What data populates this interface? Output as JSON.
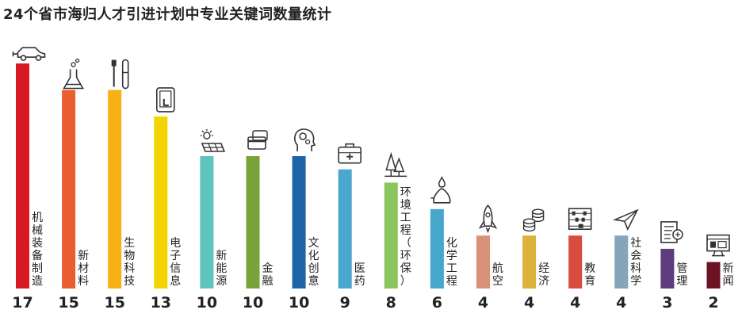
{
  "title": "24个省市海归人才引进计划中专业关键词数量统计",
  "chart_data": {
    "type": "bar",
    "title": "24个省市海归人才引进计划中专业关键词数量统计",
    "xlabel": "",
    "ylabel": "",
    "ylim": [
      0,
      17
    ],
    "grid": false,
    "legend": "none",
    "categories": [
      "机械装备制造",
      "新材料",
      "生物科技",
      "电子信息",
      "新能源",
      "金融",
      "文化创意",
      "医药",
      "环境工程（环保）",
      "化学工程",
      "航空",
      "经济",
      "教育",
      "社会科学",
      "管理",
      "新闻"
    ],
    "values": [
      17,
      15,
      15,
      13,
      10,
      10,
      10,
      9,
      8,
      6,
      4,
      4,
      4,
      4,
      3,
      2
    ],
    "colors": [
      "#d71921",
      "#ea5d2d",
      "#f6b215",
      "#f1d400",
      "#5ec4bd",
      "#7aa23a",
      "#1d65a6",
      "#4ba6d0",
      "#8cc460",
      "#47a7cb",
      "#d99079",
      "#dcb23a",
      "#d94b3c",
      "#86a4ba",
      "#5e3b7b",
      "#6e1125"
    ],
    "icons": [
      "car-plug-icon",
      "flask-icon",
      "test-tube-icon",
      "tablet-touch-icon",
      "solar-panel-icon",
      "credit-card-icon",
      "head-gears-icon",
      "medical-kit-icon",
      "trees-icon",
      "bunsen-burner-icon",
      "rocket-icon",
      "coins-icon",
      "abacus-icon",
      "paper-plane-icon",
      "document-chart-icon",
      "monitor-news-icon"
    ]
  }
}
